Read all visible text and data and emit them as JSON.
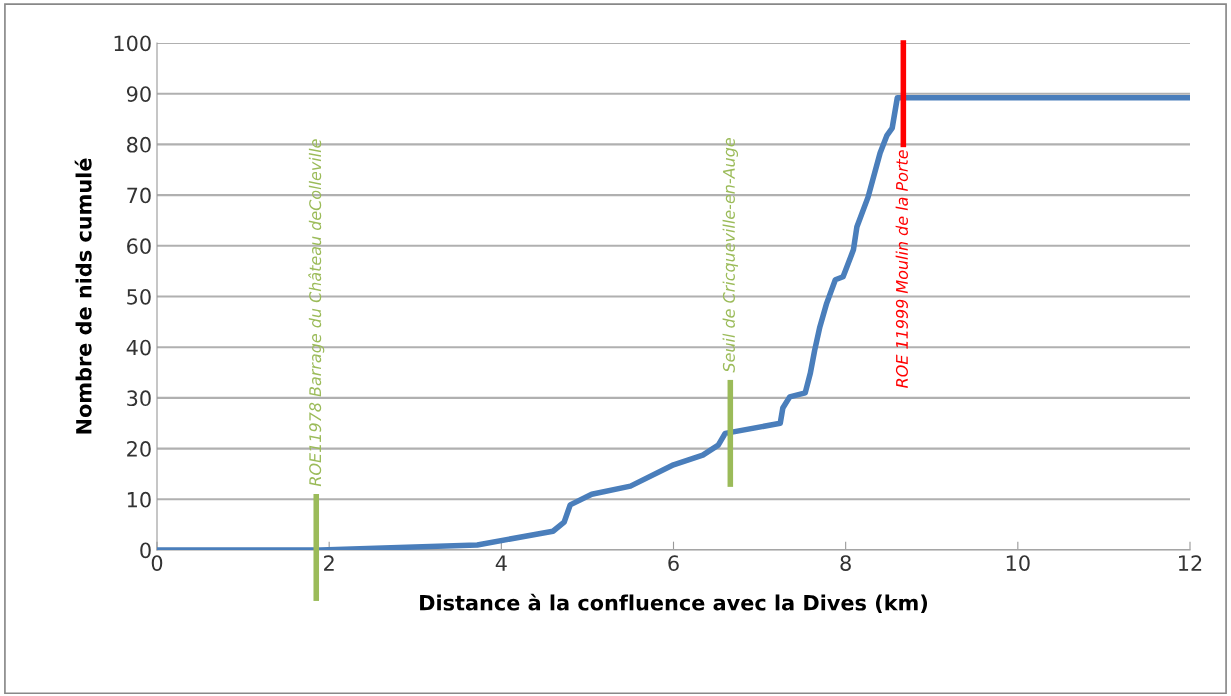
{
  "chart_data": {
    "type": "line",
    "xlabel": "Distance à la confluence avec la Dives (km)",
    "ylabel": "Nombre de nids cumulé",
    "series": [
      {
        "color": "#4a7ebb",
        "x": [
          0,
          1.9,
          3.72,
          4.6,
          4.73,
          4.8,
          5.05,
          5.5,
          6.0,
          6.34,
          6.52,
          6.6,
          7.24,
          7.27,
          7.35,
          7.53,
          7.59,
          7.64,
          7.7,
          7.78,
          7.88,
          7.97,
          8.09,
          8.13,
          8.26,
          8.4,
          8.48,
          8.54,
          8.6,
          12
        ],
        "values": [
          0,
          0,
          1,
          3.7,
          5.5,
          8.9,
          11,
          12.6,
          16.8,
          18.7,
          20.7,
          23,
          25,
          28,
          30.2,
          31,
          34.9,
          39.4,
          44,
          48.7,
          53.3,
          53.9,
          59.2,
          63.7,
          69.6,
          78.3,
          81.8,
          83.2,
          89.2,
          89.2
        ]
      }
    ],
    "xlim": [
      0,
      12
    ],
    "xticks": [
      0,
      2,
      4,
      6,
      8,
      10,
      12
    ],
    "ylim": [
      0,
      100
    ],
    "yticks": [
      0,
      10,
      20,
      30,
      40,
      50,
      60,
      70,
      80,
      90,
      100
    ],
    "grid": "y",
    "marker": "none",
    "line_style": "solid",
    "ref_lines": [
      {
        "axis": "x",
        "value": 1.85,
        "label": "ROE11978 Barrage du Château deColleville",
        "color": "#9bbb59"
      },
      {
        "axis": "x",
        "value": 6.66,
        "label": "Seuil de Cricqueville-en-Auge",
        "color": "#9bbb59"
      },
      {
        "axis": "x",
        "value": 8.67,
        "label": "ROE 11999 Moulin de la Porte",
        "color": "#ff0000"
      }
    ]
  }
}
